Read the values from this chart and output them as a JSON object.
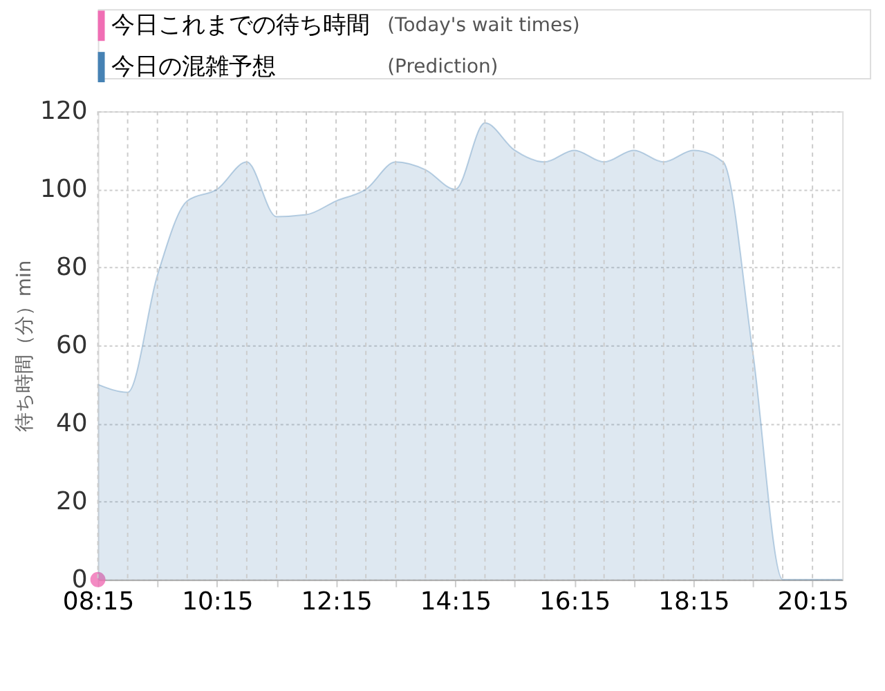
{
  "chart_data": {
    "type": "area",
    "ylabel": "待ち時間（分）min",
    "series": [
      {
        "name": "今日これまでの待ち時間",
        "type": "scatter",
        "color": "#f06eb4",
        "marker": "circle",
        "x": [
          8.25
        ],
        "values": [
          0
        ]
      },
      {
        "name": "今日の混雑予想",
        "color": "#4682b4",
        "marker": "none",
        "x": [
          8.25,
          8.75,
          9.25,
          9.75,
          10.25,
          10.75,
          11.25,
          11.75,
          12.25,
          12.75,
          13.25,
          13.75,
          14.25,
          14.75,
          15.25,
          15.75,
          16.25,
          16.75,
          17.25,
          17.75,
          18.25,
          18.75,
          19.25,
          19.75,
          20.25,
          20.75
        ],
        "values": [
          50,
          48,
          78,
          97,
          100,
          107,
          93,
          93.5,
          97,
          100,
          107,
          105,
          100,
          117,
          110,
          107,
          110,
          107,
          110,
          107,
          110,
          107,
          58,
          0,
          0,
          0
        ]
      }
    ],
    "annotations": [
      "(Today's wait times)",
      "(Prediction)"
    ],
    "xlim": [
      8.25,
      20.75
    ],
    "xticks": [
      {
        "value": 8.25,
        "label": "08:15"
      },
      {
        "value": 8.75,
        "label": null
      },
      {
        "value": 9.25,
        "label": null
      },
      {
        "value": 9.75,
        "label": null
      },
      {
        "value": 10.25,
        "label": "10:15"
      },
      {
        "value": 10.75,
        "label": null
      },
      {
        "value": 11.25,
        "label": null
      },
      {
        "value": 11.75,
        "label": null
      },
      {
        "value": 12.25,
        "label": "12:15"
      },
      {
        "value": 12.75,
        "label": null
      },
      {
        "value": 13.25,
        "label": null
      },
      {
        "value": 13.75,
        "label": null
      },
      {
        "value": 14.25,
        "label": "14:15"
      },
      {
        "value": 14.75,
        "label": null
      },
      {
        "value": 15.25,
        "label": null
      },
      {
        "value": 15.75,
        "label": null
      },
      {
        "value": 16.25,
        "label": "16:15"
      },
      {
        "value": 16.75,
        "label": null
      },
      {
        "value": 17.25,
        "label": null
      },
      {
        "value": 17.75,
        "label": null
      },
      {
        "value": 18.25,
        "label": "18:15"
      },
      {
        "value": 18.75,
        "label": null
      },
      {
        "value": 19.25,
        "label": null
      },
      {
        "value": 19.75,
        "label": null
      },
      {
        "value": 20.25,
        "label": "20:15"
      }
    ],
    "ylim": [
      0,
      120
    ],
    "yticks": [
      0,
      20,
      40,
      60,
      80,
      100,
      120
    ],
    "grid": true,
    "legend": "top left"
  }
}
